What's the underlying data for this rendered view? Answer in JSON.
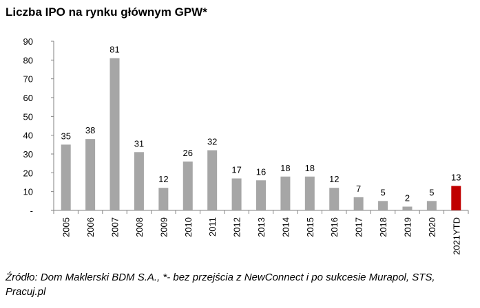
{
  "title": "Liczba IPO na rynku głównym GPW*",
  "source_note": "Źródło: Dom Maklerski BDM S.A., *- bez przejścia z NewConnect i po sukcesie Murapol, STS, Pracuj.pl",
  "chart_data": {
    "type": "bar",
    "title": "Liczba IPO na rynku głównym GPW*",
    "categories": [
      "2005",
      "2006",
      "2007",
      "2008",
      "2009",
      "2010",
      "2011",
      "2012",
      "2013",
      "2014",
      "2015",
      "2016",
      "2017",
      "2018",
      "2019",
      "2020",
      "2021YTD"
    ],
    "values": [
      35,
      38,
      81,
      31,
      12,
      26,
      32,
      17,
      16,
      18,
      18,
      12,
      7,
      5,
      2,
      5,
      13
    ],
    "ylim": [
      0,
      90
    ],
    "yticks": [
      "-",
      "10",
      "20",
      "30",
      "40",
      "50",
      "60",
      "70",
      "80",
      "90"
    ],
    "grid": false,
    "colors": {
      "default": "#a6a6a6",
      "highlight": "#c00000"
    },
    "highlight_category": "2021YTD"
  }
}
